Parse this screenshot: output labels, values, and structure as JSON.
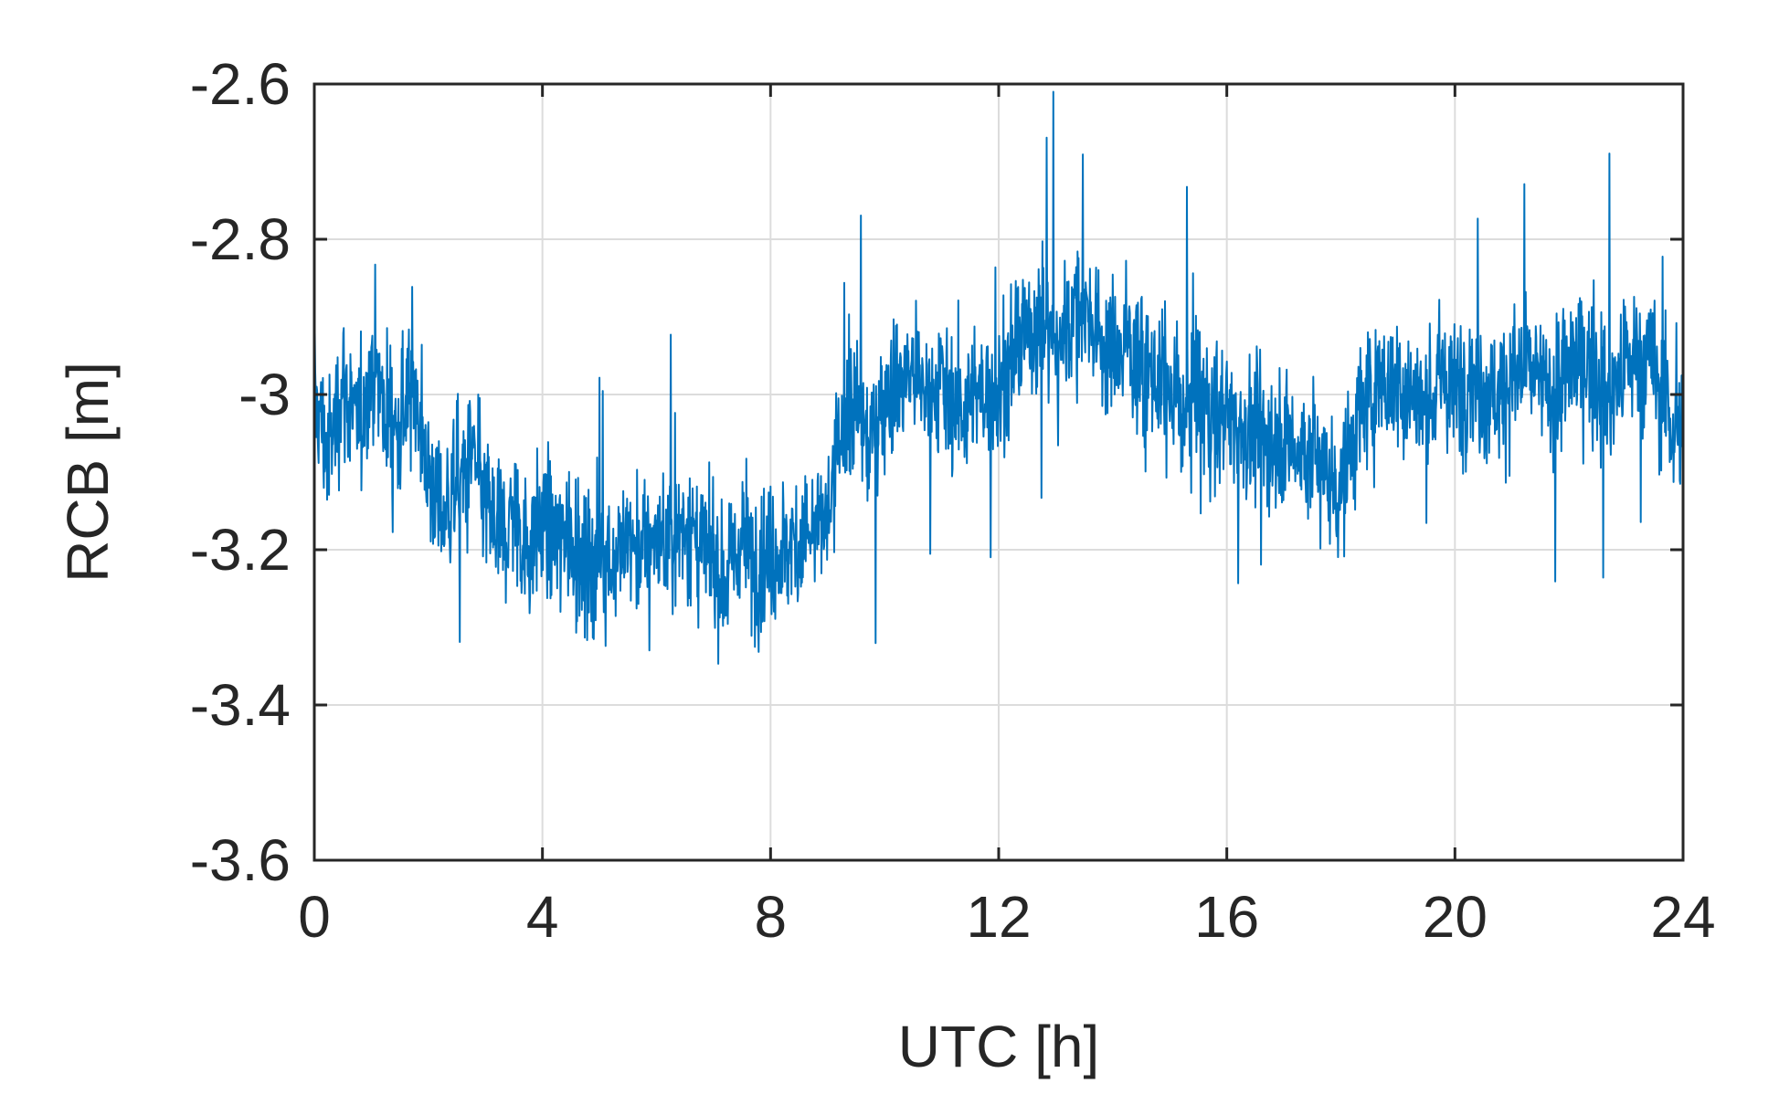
{
  "chart_data": {
    "type": "line",
    "title": "",
    "xlabel": "UTC [h]",
    "ylabel": "RCB [m]",
    "xlim": [
      0,
      24
    ],
    "ylim": [
      -3.6,
      -2.6
    ],
    "xticks": [
      0,
      4,
      8,
      12,
      16,
      20,
      24
    ],
    "xtick_labels": [
      "0",
      "4",
      "8",
      "12",
      "16",
      "20",
      "24"
    ],
    "yticks": [
      -2.6,
      -2.8,
      -3.0,
      -3.2,
      -3.4,
      -3.6
    ],
    "ytick_labels": [
      "-2.6",
      "-2.8",
      "-3",
      "-3.2",
      "-3.4",
      "-3.6"
    ],
    "grid": true,
    "series": [
      {
        "color": "#0072BD",
        "x": [
          0,
          0.25,
          0.5,
          0.75,
          1,
          1.25,
          1.5,
          1.75,
          2,
          2.25,
          2.5,
          2.75,
          3,
          3.25,
          3.5,
          3.75,
          4,
          4.25,
          4.5,
          4.75,
          5,
          5.25,
          5.5,
          5.75,
          6,
          6.25,
          6.5,
          6.75,
          7,
          7.25,
          7.5,
          7.75,
          8,
          8.25,
          8.5,
          8.75,
          9,
          9.25,
          9.5,
          9.75,
          10,
          10.25,
          10.5,
          10.75,
          11,
          11.25,
          11.5,
          11.75,
          12,
          12.25,
          12.5,
          12.75,
          13,
          13.25,
          13.5,
          13.75,
          14,
          14.25,
          14.5,
          14.75,
          15,
          15.25,
          15.5,
          15.75,
          16,
          16.25,
          16.5,
          16.75,
          17,
          17.25,
          17.5,
          17.75,
          18,
          18.25,
          18.5,
          18.75,
          19,
          19.25,
          19.5,
          19.75,
          20,
          20.25,
          20.5,
          20.75,
          21,
          21.25,
          21.5,
          21.75,
          22,
          22.25,
          22.5,
          22.75,
          23,
          23.25,
          23.5,
          23.75,
          24
        ],
        "y": [
          -3.0,
          -3.08,
          -2.98,
          -3.05,
          -2.96,
          -3.02,
          -3.04,
          -2.98,
          -3.1,
          -3.16,
          -3.12,
          -3.08,
          -3.14,
          -3.18,
          -3.15,
          -3.2,
          -3.16,
          -3.19,
          -3.18,
          -3.22,
          -3.2,
          -3.21,
          -3.19,
          -3.2,
          -3.18,
          -3.2,
          -3.16,
          -3.2,
          -3.22,
          -3.24,
          -3.18,
          -3.22,
          -3.21,
          -3.2,
          -3.19,
          -3.18,
          -3.16,
          -3.05,
          -3.02,
          -3.06,
          -3.0,
          -2.98,
          -2.97,
          -3.0,
          -2.98,
          -3.01,
          -3.02,
          -2.99,
          -3.0,
          -2.95,
          -2.92,
          -2.9,
          -2.94,
          -2.9,
          -2.88,
          -2.92,
          -2.95,
          -2.93,
          -2.96,
          -2.98,
          -3.0,
          -3.02,
          -2.99,
          -3.03,
          -3.02,
          -3.04,
          -3.05,
          -3.06,
          -3.05,
          -3.08,
          -3.07,
          -3.1,
          -3.12,
          -3.05,
          -3.0,
          -2.98,
          -2.99,
          -3.0,
          -3.02,
          -2.98,
          -3.0,
          -2.97,
          -2.99,
          -3.0,
          -2.98,
          -2.96,
          -2.99,
          -3.0,
          -2.97,
          -2.95,
          -2.98,
          -3.0,
          -2.96,
          -2.95,
          -2.97,
          -3.02,
          -3.08
        ]
      }
    ]
  }
}
